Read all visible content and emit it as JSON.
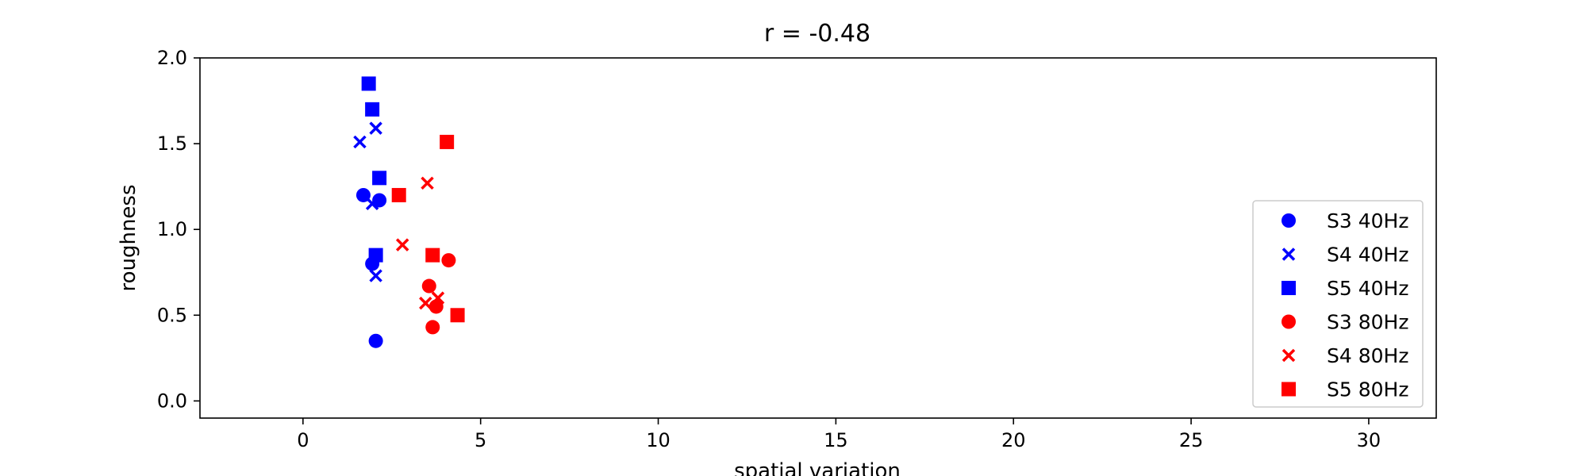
{
  "chart_data": {
    "type": "scatter",
    "title": "r = -0.48",
    "xlabel": "spatial variation",
    "ylabel": "roughness",
    "xlim": [
      -2.9,
      31.9
    ],
    "ylim": [
      -0.1,
      2.0
    ],
    "xticks": [
      0,
      5,
      10,
      15,
      20,
      25,
      30
    ],
    "yticks": [
      0.0,
      0.5,
      1.0,
      1.5,
      2.0
    ],
    "xtick_labels": [
      "0",
      "5",
      "10",
      "15",
      "20",
      "25",
      "30"
    ],
    "ytick_labels": [
      "0.0",
      "0.5",
      "1.0",
      "1.5",
      "2.0"
    ],
    "grid": false,
    "legend_position": "lower-right",
    "series": [
      {
        "name": "S3 40Hz",
        "marker": "circle",
        "color": "#0000ff",
        "points": [
          [
            1.7,
            1.2
          ],
          [
            2.15,
            1.17
          ],
          [
            1.95,
            0.8
          ],
          [
            2.05,
            0.35
          ]
        ]
      },
      {
        "name": "S4 40Hz",
        "marker": "x",
        "color": "#0000ff",
        "points": [
          [
            1.6,
            1.51
          ],
          [
            2.05,
            1.59
          ],
          [
            2.05,
            0.73
          ],
          [
            1.95,
            1.15
          ]
        ]
      },
      {
        "name": "S5 40Hz",
        "marker": "square",
        "color": "#0000ff",
        "points": [
          [
            1.85,
            1.85
          ],
          [
            1.95,
            1.7
          ],
          [
            2.15,
            1.3
          ],
          [
            2.05,
            0.85
          ]
        ]
      },
      {
        "name": "S3 80Hz",
        "marker": "circle",
        "color": "#ff0000",
        "points": [
          [
            4.1,
            0.82
          ],
          [
            3.55,
            0.67
          ],
          [
            3.75,
            0.55
          ],
          [
            3.65,
            0.43
          ]
        ]
      },
      {
        "name": "S4 80Hz",
        "marker": "x",
        "color": "#ff0000",
        "points": [
          [
            3.5,
            1.27
          ],
          [
            2.8,
            0.91
          ],
          [
            3.8,
            0.6
          ],
          [
            3.45,
            0.57
          ]
        ]
      },
      {
        "name": "S5 80Hz",
        "marker": "square",
        "color": "#ff0000",
        "points": [
          [
            4.05,
            1.51
          ],
          [
            2.7,
            1.2
          ],
          [
            3.65,
            0.85
          ],
          [
            4.35,
            0.5
          ]
        ]
      }
    ]
  }
}
